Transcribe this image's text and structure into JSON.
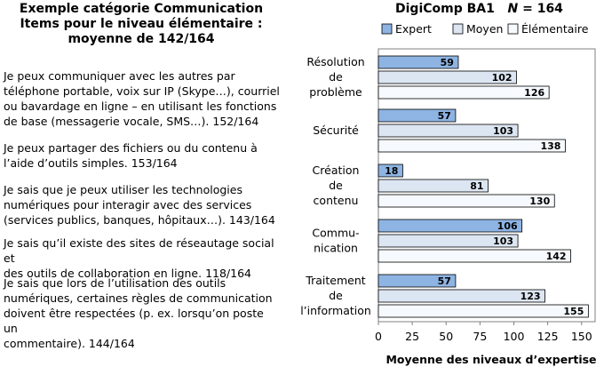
{
  "left": {
    "title_line1": "Exemple catégorie Communication",
    "title_line2": "Items pour le niveau élémentaire :",
    "title_line3": "moyenne de 142/164",
    "items": [
      [
        "Je peux communiquer avec les autres par",
        "téléphone portable, voix sur IP (Skype…), courriel",
        "ou bavardage en ligne – en utilisant les fonctions",
        "de base (messagerie vocale, SMS…). 152/164"
      ],
      [
        "Je peux partager des fichiers ou du contenu à",
        "l’aide d’outils simples. 153/164"
      ],
      [
        "Je sais que je peux utiliser les technologies",
        "numériques pour interagir avec des services",
        "(services publics, banques, hôpitaux…). 143/164"
      ],
      [
        "Je sais qu’il existe des sites de réseautage social et",
        "des outils de collaboration en ligne. 118/164"
      ],
      [
        "Je sais que lors de l’utilisation des outils",
        "numériques, certaines règles de communication",
        "doivent être respectées (p. ex. lorsqu’on poste un",
        "commentaire). 144/164"
      ]
    ]
  },
  "chart_title": {
    "main": "DigiComp BA1",
    "n_label": "N",
    "n_value": "= 164"
  },
  "chart_data": {
    "type": "bar",
    "orientation": "horizontal",
    "categories": [
      [
        "Résolution",
        "de",
        "problème"
      ],
      [
        "Sécurité"
      ],
      [
        "Création",
        "de",
        "contenu"
      ],
      [
        "Commu-",
        "nication"
      ],
      [
        "Traitement",
        "de",
        "l’information"
      ]
    ],
    "series": [
      {
        "name": "Expert",
        "color": "#8eb4e3",
        "values": [
          59,
          57,
          18,
          106,
          57
        ]
      },
      {
        "name": "Moyen",
        "color": "#dce6f2",
        "values": [
          102,
          103,
          81,
          103,
          123
        ]
      },
      {
        "name": "Élémentaire",
        "color": "#f6f9fd",
        "values": [
          126,
          138,
          130,
          142,
          155
        ]
      }
    ],
    "xlim": [
      0,
      160
    ],
    "xticks": [
      0,
      25,
      50,
      75,
      100,
      125,
      150
    ],
    "xlabel": "Moyenne des niveaux d’expertise",
    "legend": "top",
    "grid": false
  }
}
